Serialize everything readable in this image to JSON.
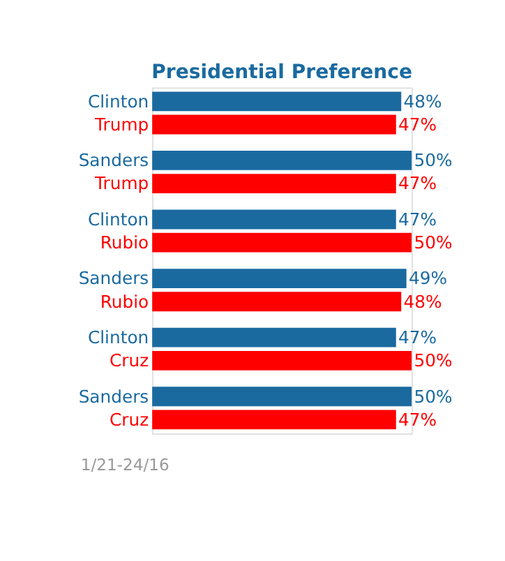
{
  "chart_data": {
    "type": "bar",
    "orientation": "horizontal",
    "title": "Presidential Preference",
    "categories": [
      "Clinton",
      "Trump",
      "Sanders",
      "Trump",
      "Clinton",
      "Rubio",
      "Sanders",
      "Rubio",
      "Clinton",
      "Cruz",
      "Sanders",
      "Cruz"
    ],
    "values": [
      48,
      47,
      50,
      47,
      47,
      50,
      49,
      48,
      47,
      50,
      50,
      47
    ],
    "colors": [
      "#1a6aa0",
      "#ff0000",
      "#1a6aa0",
      "#ff0000",
      "#1a6aa0",
      "#ff0000",
      "#1a6aa0",
      "#ff0000",
      "#1a6aa0",
      "#ff0000",
      "#1a6aa0",
      "#ff0000"
    ],
    "value_labels": [
      "48%",
      "47%",
      "50%",
      "47%",
      "47%",
      "50%",
      "49%",
      "48%",
      "47%",
      "50%",
      "50%",
      "47%"
    ],
    "annotations": [
      "1/21-24/16"
    ],
    "legend": false,
    "grid": false
  }
}
